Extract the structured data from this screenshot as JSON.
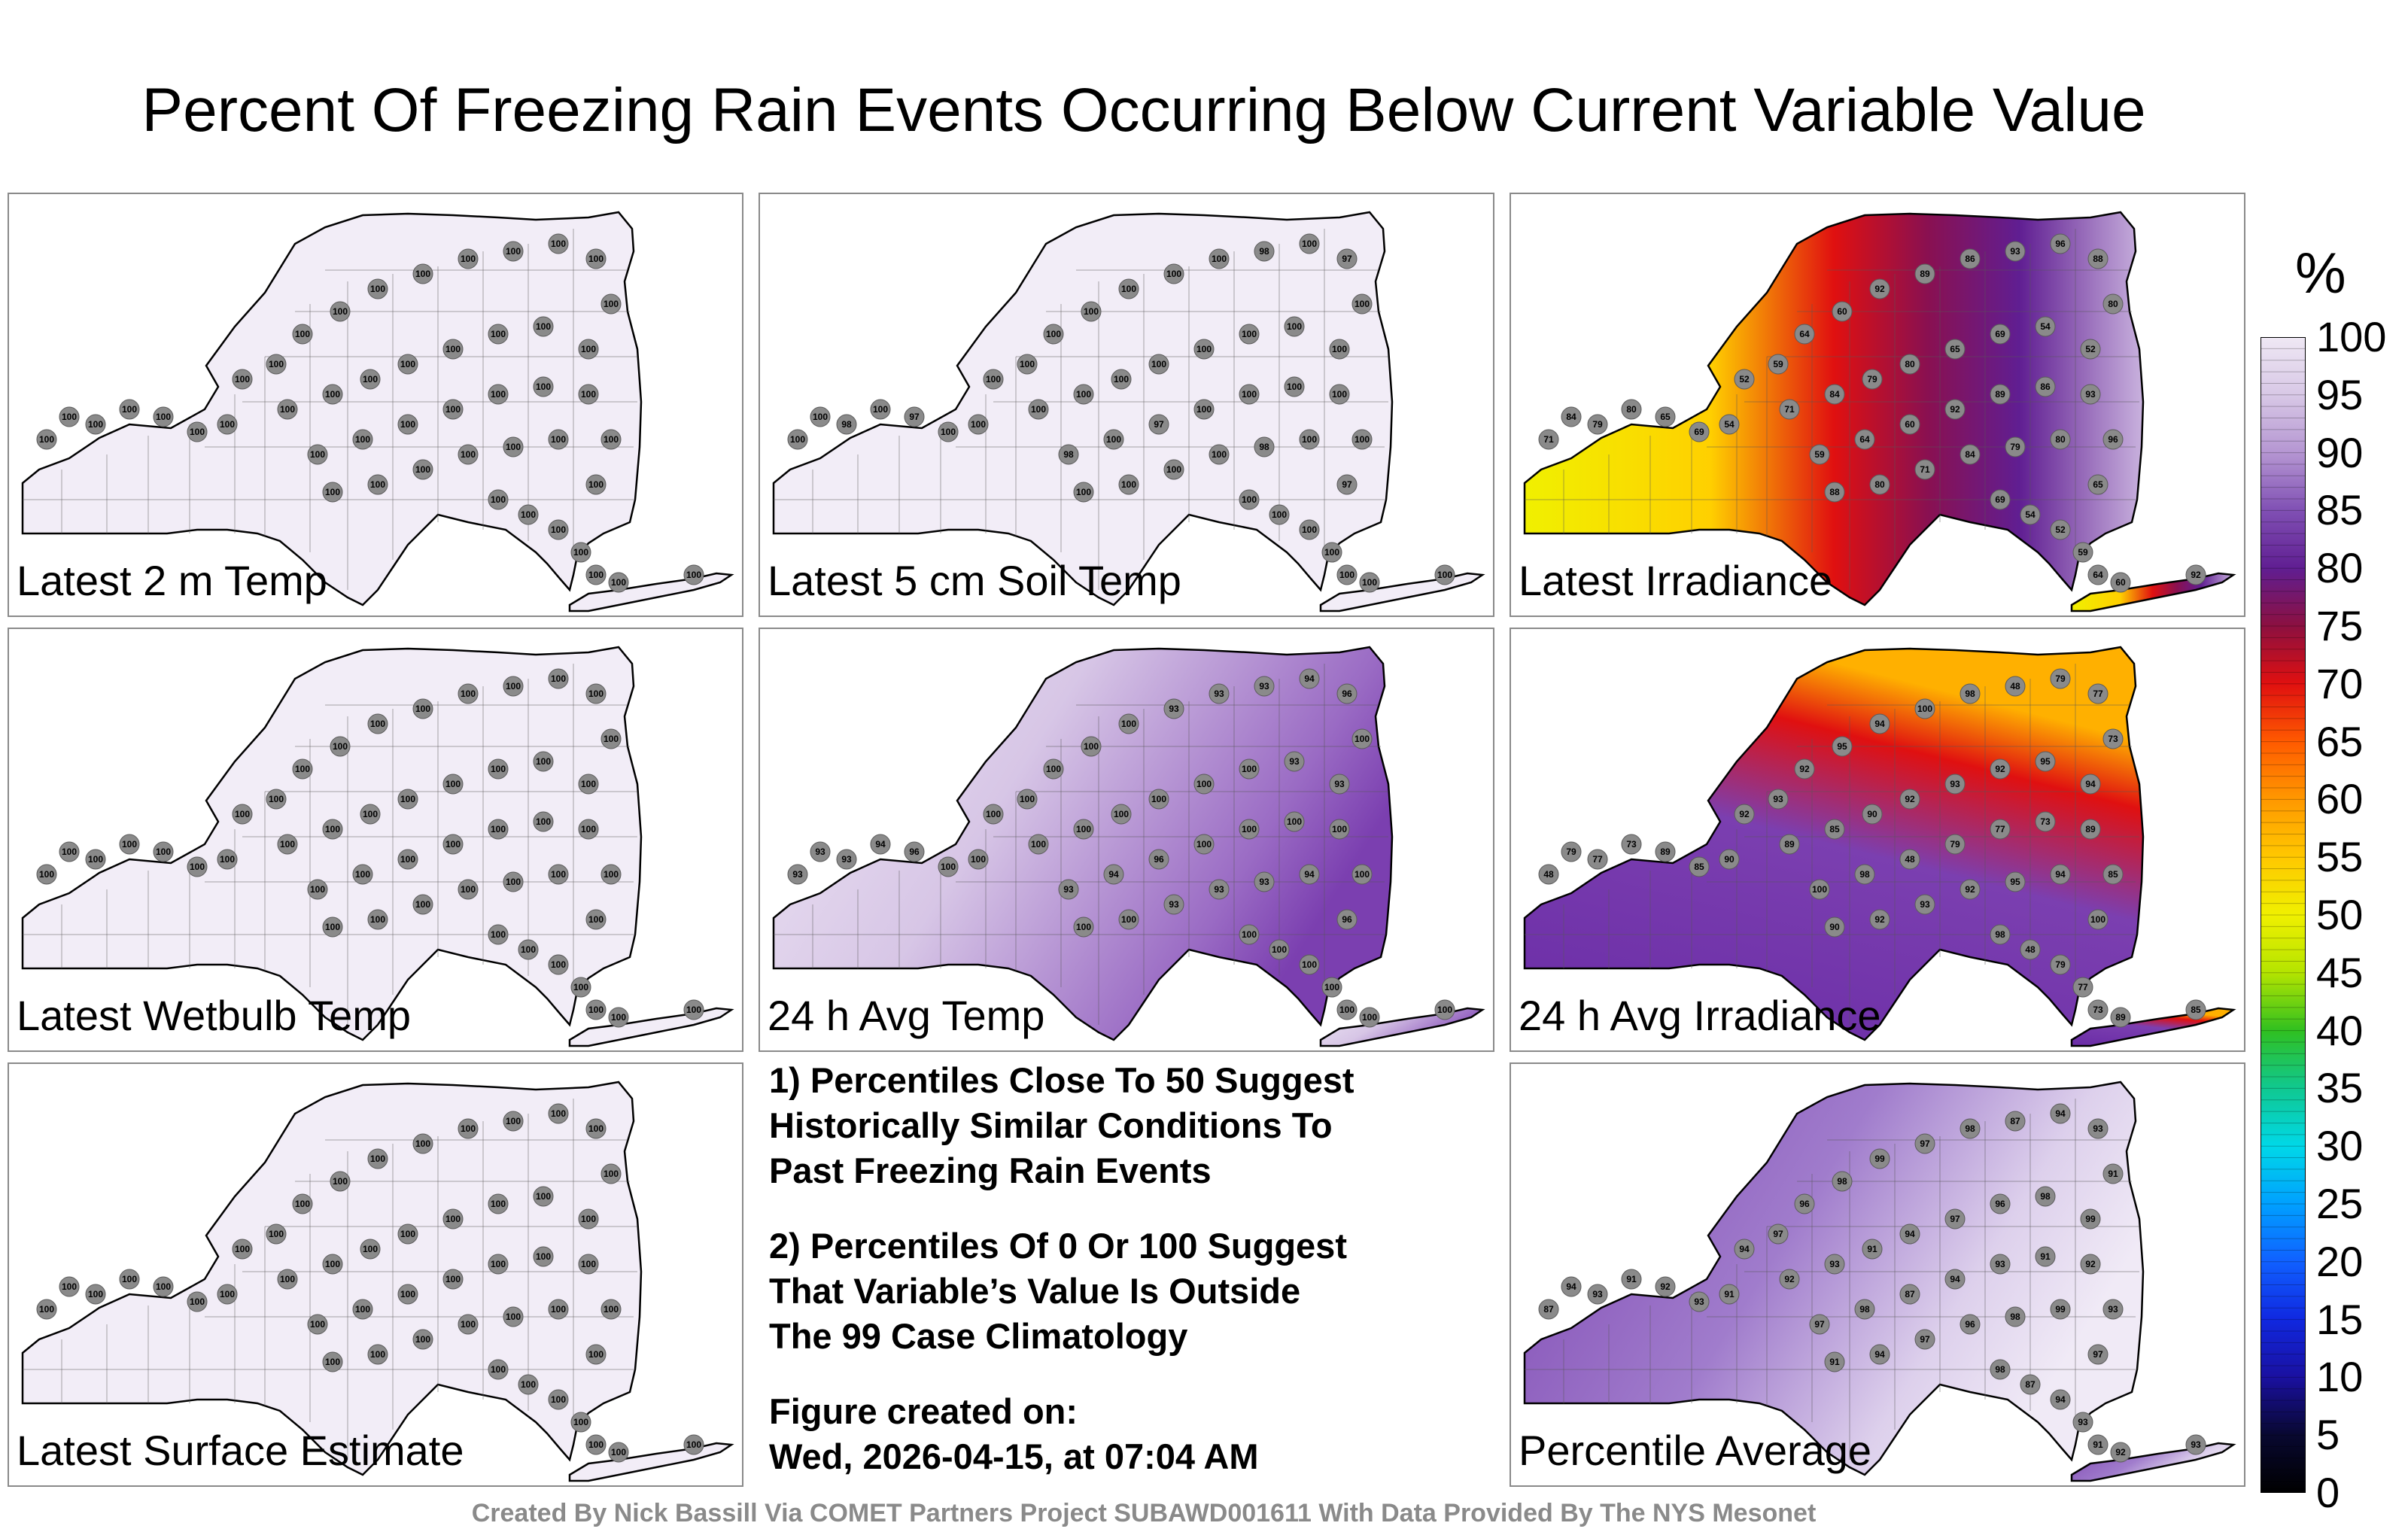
{
  "title": "Percent Of Freezing Rain Events Occurring Below Current Variable Value",
  "panels": [
    {
      "label": "Latest 2 m Temp",
      "fill": "uniform_high",
      "station_values": [
        "100",
        "100",
        "100",
        "100",
        "100",
        "100",
        "100",
        "100",
        "100",
        "100",
        "100",
        "100"
      ]
    },
    {
      "label": "Latest 5 cm Soil Temp",
      "fill": "uniform_high",
      "station_values": [
        "100",
        "100",
        "98",
        "100",
        "97",
        "100",
        "100",
        "100",
        "100",
        "100",
        "100",
        "100"
      ]
    },
    {
      "label": "Latest Irradiance",
      "fill": "irradiance",
      "station_values": [
        "71",
        "84",
        "79",
        "80",
        "65",
        "69",
        "54",
        "52",
        "59",
        "64",
        "60",
        "92",
        "89",
        "86",
        "93",
        "96",
        "88",
        "80"
      ]
    },
    {
      "label": "Latest Wetbulb Temp",
      "fill": "uniform_high",
      "station_values": [
        "100",
        "100",
        "100",
        "100",
        "100",
        "100",
        "100",
        "100",
        "100",
        "100",
        "100",
        "100"
      ]
    },
    {
      "label": "24 h Avg Temp",
      "fill": "avg_temp",
      "station_values": [
        "93",
        "93",
        "93",
        "94",
        "96",
        "100",
        "100",
        "100",
        "100",
        "100",
        "100",
        "100"
      ]
    },
    {
      "label": "24 h Avg Irradiance",
      "fill": "avg_irradiance",
      "station_values": [
        "48",
        "79",
        "77",
        "73",
        "89",
        "85",
        "90",
        "92",
        "93",
        "92",
        "95",
        "94",
        "100",
        "98"
      ]
    },
    {
      "label": "Latest Surface Estimate",
      "fill": "uniform_high",
      "station_values": [
        "100",
        "100",
        "100",
        "100",
        "100",
        "100",
        "100",
        "100",
        "100",
        "100",
        "100",
        "100"
      ]
    },
    {
      "label": "Percentile Average",
      "fill": "average",
      "station_values": [
        "87",
        "94",
        "93",
        "91",
        "92",
        "93",
        "91",
        "94",
        "97",
        "96",
        "98",
        "99",
        "97",
        "98"
      ]
    }
  ],
  "notes": [
    "1) Percentiles Close To 50 Suggest\nHistorically Similar Conditions To\nPast Freezing Rain Events",
    "2) Percentiles Of 0 Or 100 Suggest\nThat Variable’s Value Is Outside\nThe 99 Case Climatology"
  ],
  "figure_created_label": "Figure created on:",
  "figure_created_date": "Wed, 2026-04-15, at 07:04 AM",
  "credit": "Created By Nick Bassill Via COMET Partners Project SUBAWD001611 With Data Provided By The NYS Mesonet",
  "legend": {
    "unit": "%",
    "ticks": [
      "100",
      "95",
      "90",
      "85",
      "80",
      "75",
      "70",
      "65",
      "60",
      "55",
      "50",
      "45",
      "40",
      "35",
      "30",
      "25",
      "20",
      "15",
      "10",
      "5",
      "0"
    ],
    "colors": [
      "#efe8f4",
      "#d8c8e6",
      "#b596d2",
      "#8050b4",
      "#601e92",
      "#8c1040",
      "#e01010",
      "#ff5a00",
      "#ff9800",
      "#ffc800",
      "#f0f000",
      "#b4e400",
      "#30c020",
      "#10c890",
      "#00d8e8",
      "#00a0ff",
      "#1060ff",
      "#1028e0",
      "#1a10a0",
      "#080830",
      "#000000"
    ]
  }
}
